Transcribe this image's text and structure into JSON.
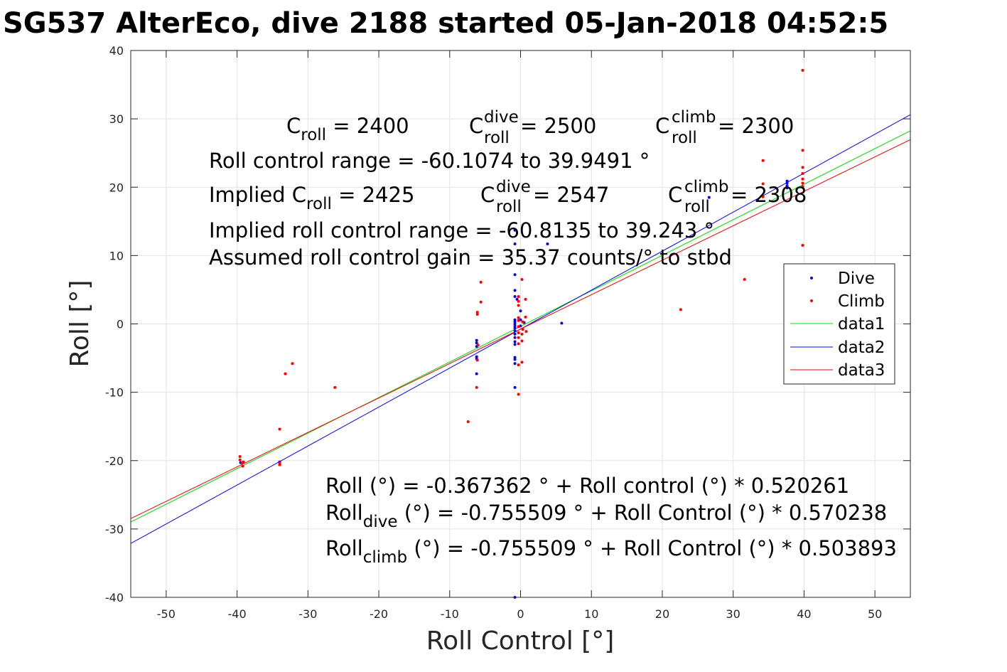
{
  "chart_data": {
    "type": "scatter",
    "title": "SG537 AlterEco, dive 2188 started 05-Jan-2018 04:52:5",
    "xlabel": "Roll Control [°]",
    "ylabel": "Roll [°]",
    "xlim": [
      -55,
      55
    ],
    "ylim": [
      -40,
      40
    ],
    "xticks": [
      -50,
      -40,
      -30,
      -20,
      -10,
      0,
      10,
      20,
      30,
      40,
      50
    ],
    "yticks": [
      -40,
      -30,
      -20,
      -10,
      0,
      10,
      20,
      30,
      40
    ],
    "xtick_labels": [
      "-50",
      "-40",
      "-30",
      "-20",
      "-10",
      "0",
      "10",
      "20",
      "30",
      "40",
      "50"
    ],
    "ytick_labels": [
      "-40",
      "-30",
      "-20",
      "-10",
      "0",
      "10",
      "20",
      "30",
      "40"
    ],
    "grid": true,
    "legend_position": "right-middle",
    "series": [
      {
        "name": "Dive",
        "kind": "points",
        "color": "#0000ff",
        "points": [
          [
            -0.8,
            13.7
          ],
          [
            -0.8,
            11.7
          ],
          [
            3.8,
            11.7
          ],
          [
            -0.8,
            7.2
          ],
          [
            -0.8,
            4.9
          ],
          [
            -0.8,
            4.0
          ],
          [
            -0.5,
            3.6
          ],
          [
            -0.8,
            0.6
          ],
          [
            -0.8,
            0.3
          ],
          [
            -0.8,
            0.0
          ],
          [
            -0.8,
            -0.3
          ],
          [
            -0.8,
            -0.6
          ],
          [
            -0.8,
            -1.0
          ],
          [
            -0.8,
            -1.5
          ],
          [
            -0.8,
            -2.0
          ],
          [
            -0.8,
            -2.6
          ],
          [
            -0.8,
            -3.0
          ],
          [
            -0.8,
            -4.9
          ],
          [
            -0.8,
            -5.2
          ],
          [
            -0.8,
            -5.8
          ],
          [
            -0.8,
            -9.3
          ],
          [
            -0.8,
            -40.0
          ],
          [
            0.0,
            1.9
          ],
          [
            0.0,
            0.6
          ],
          [
            0.0,
            -0.3
          ],
          [
            0.5,
            0.2
          ],
          [
            5.8,
            0.1
          ],
          [
            -6.2,
            -2.4
          ],
          [
            -6.2,
            -2.8
          ],
          [
            -6.2,
            -3.3
          ],
          [
            -6.2,
            -4.8
          ],
          [
            -6.2,
            -5.1
          ],
          [
            -6.2,
            -7.3
          ],
          [
            -34.0,
            -20.2
          ],
          [
            -34.0,
            -20.6
          ],
          [
            -39.5,
            -20.3
          ],
          [
            37.6,
            20.9
          ],
          [
            37.6,
            20.6
          ],
          [
            37.6,
            20.2
          ],
          [
            37.6,
            19.9
          ],
          [
            26.6,
            18.5
          ]
        ]
      },
      {
        "name": "Climb",
        "kind": "points",
        "color": "#ff0000",
        "points": [
          [
            39.8,
            37.1
          ],
          [
            39.8,
            25.4
          ],
          [
            34.2,
            23.9
          ],
          [
            39.8,
            22.9
          ],
          [
            39.8,
            22.0
          ],
          [
            39.8,
            21.2
          ],
          [
            34.2,
            20.5
          ],
          [
            39.8,
            20.6
          ],
          [
            39.8,
            20.1
          ],
          [
            34.2,
            18.6
          ],
          [
            39.8,
            11.5
          ],
          [
            31.6,
            6.5
          ],
          [
            22.6,
            2.1
          ],
          [
            -5.6,
            6.1
          ],
          [
            -5.6,
            3.2
          ],
          [
            -6.1,
            1.7
          ],
          [
            -6.1,
            1.4
          ],
          [
            -6.0,
            -3.1
          ],
          [
            -6.1,
            -5.3
          ],
          [
            -6.2,
            -9.3
          ],
          [
            -7.4,
            -14.3
          ],
          [
            0.2,
            6.5
          ],
          [
            0.7,
            3.6
          ],
          [
            -0.3,
            4.0
          ],
          [
            -0.3,
            3.3
          ],
          [
            -0.3,
            2.7
          ],
          [
            -0.3,
            0.9
          ],
          [
            -0.3,
            0.5
          ],
          [
            0.3,
            0.3
          ],
          [
            0.7,
            1.0
          ],
          [
            -0.3,
            -0.4
          ],
          [
            0.3,
            -0.8
          ],
          [
            0.8,
            -1.1
          ],
          [
            -0.3,
            -1.3
          ],
          [
            0.2,
            -1.5
          ],
          [
            -0.3,
            -2.0
          ],
          [
            0.2,
            -2.5
          ],
          [
            -0.3,
            -2.9
          ],
          [
            0.2,
            -5.6
          ],
          [
            -0.3,
            -6.0
          ],
          [
            -0.3,
            -10.3
          ],
          [
            -26.2,
            -9.3
          ],
          [
            -32.2,
            -5.8
          ],
          [
            -33.2,
            -7.3
          ],
          [
            -34.0,
            -15.4
          ],
          [
            -34.0,
            -20.3
          ],
          [
            -34.0,
            -20.6
          ],
          [
            -39.6,
            -19.4
          ],
          [
            -39.6,
            -19.9
          ],
          [
            -39.3,
            -20.3
          ],
          [
            -39.1,
            -20.2
          ],
          [
            -39.2,
            -20.8
          ]
        ]
      },
      {
        "name": "data1",
        "kind": "line",
        "color": "#00dd00",
        "x": [
          -55,
          55
        ],
        "y": [
          -28.981,
          28.247
        ]
      },
      {
        "name": "data2",
        "kind": "line",
        "color": "#0000ff",
        "x": [
          -55,
          55
        ],
        "y": [
          -32.119,
          30.607
        ]
      },
      {
        "name": "data3",
        "kind": "line",
        "color": "#ff0000",
        "x": [
          -55,
          55
        ],
        "y": [
          -28.47,
          26.958
        ]
      }
    ],
    "annotations": {
      "c_roll": {
        "base": "C",
        "sub": "roll",
        "value": " = 2400"
      },
      "c_roll_dive": {
        "base": "C",
        "sup": "dive",
        "sub": "roll",
        "value": " = 2500"
      },
      "c_roll_climb": {
        "base": "C",
        "sup": "climb",
        "sub": "roll",
        "value": " = 2300"
      },
      "range": "Roll control range = -60.1074 to 39.9491 °",
      "implied_prefix": "Implied C",
      "implied_sub": "roll",
      "implied_value": " = 2425",
      "implied_dive": {
        "base": "C",
        "sup": "dive",
        "sub": "roll",
        "value": " = 2547"
      },
      "implied_climb": {
        "base": "C",
        "sup": "climb",
        "sub": "roll",
        "value": " = 2308"
      },
      "implied_range": "Implied roll control range = -60.8135 to 39.243 °",
      "gain": "Assumed roll control gain = 35.37 counts/° to stbd",
      "fit": "Roll (°) = -0.367362 ° + Roll control (°) * 0.520261",
      "fit_dive": {
        "base": "Roll",
        "sub": "dive",
        "rest": " (°) = -0.755509 ° + Roll Control (°) * 0.570238"
      },
      "fit_climb": {
        "base": "Roll",
        "sub": "climb",
        "rest": " (°) = -0.755509 ° + Roll Control (°) * 0.503893"
      }
    }
  }
}
